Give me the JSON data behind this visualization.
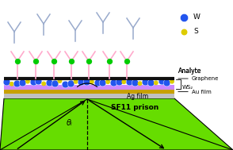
{
  "bg_color": "#ffffff",
  "prism_color": "#66dd00",
  "ag_film_color": "#c0c0c0",
  "au_film_color": "#c8a000",
  "ws2_color": "#cc88ff",
  "graphene_color": "#111111",
  "blue_dot_color": "#2255ee",
  "yellow_dot_color": "#ddcc00",
  "antibody_color": "#ffaacc",
  "antibody_free_color": "#99aacc",
  "green_dot_color": "#00cc00",
  "label_analyte": "Analyte",
  "label_graphene": "Graphene",
  "label_ws2": "WS₂",
  "label_au": "Au film",
  "label_ag": "Ag film",
  "label_sf11": "SF11 prison",
  "label_theta": "θᵢ",
  "label_W": "W",
  "label_S": "S",
  "figsize": [
    2.94,
    1.89
  ],
  "dpi": 100
}
